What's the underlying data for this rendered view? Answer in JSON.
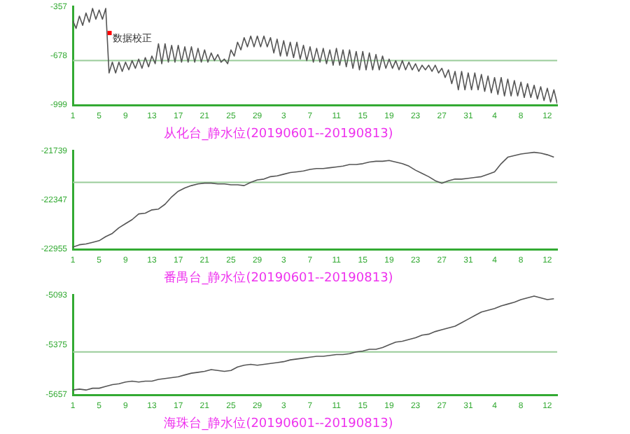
{
  "chart_data": [
    {
      "type": "line",
      "title": "从化台_静水位(20190601--20190813)",
      "grid": false,
      "legend": false,
      "marker": "none",
      "line_style": "solid",
      "xlim": [
        "2019-06-01",
        "2019-08-13T12:00"
      ],
      "xticks": [
        {
          "value": "2019-06-01",
          "label": "1"
        },
        {
          "value": "2019-06-05",
          "label": "5"
        },
        {
          "value": "2019-06-09",
          "label": "9"
        },
        {
          "value": "2019-06-13",
          "label": "13"
        },
        {
          "value": "2019-06-17",
          "label": "17"
        },
        {
          "value": "2019-06-21",
          "label": "21"
        },
        {
          "value": "2019-06-25",
          "label": "25"
        },
        {
          "value": "2019-06-29",
          "label": "29"
        },
        {
          "value": "2019-07-03",
          "label": "3"
        },
        {
          "value": "2019-07-07",
          "label": "7"
        },
        {
          "value": "2019-07-11",
          "label": "11"
        },
        {
          "value": "2019-07-15",
          "label": "15"
        },
        {
          "value": "2019-07-19",
          "label": "19"
        },
        {
          "value": "2019-07-23",
          "label": "23"
        },
        {
          "value": "2019-07-27",
          "label": "27"
        },
        {
          "value": "2019-07-31",
          "label": "31"
        },
        {
          "value": "2019-08-04",
          "label": "4"
        },
        {
          "value": "2019-08-08",
          "label": "8"
        },
        {
          "value": "2019-08-12",
          "label": "12"
        }
      ],
      "ylim": [
        -999,
        -357
      ],
      "yticks": [
        -999,
        -678,
        -357
      ],
      "ref_lines": [
        {
          "axis": "y",
          "value": -710,
          "color": "#99cc99"
        }
      ],
      "annotations": [
        {
          "text": "数据校正",
          "x": "2019-06-06T14:00",
          "y": -530
        }
      ],
      "series": [
        {
          "color": "#555555",
          "x": [
            "2019-06-01T00:00",
            "2019-06-01T12:00",
            "2019-06-02T00:00",
            "2019-06-02T12:00",
            "2019-06-03T00:00",
            "2019-06-03T12:00",
            "2019-06-04T00:00",
            "2019-06-04T12:00",
            "2019-06-05T00:00",
            "2019-06-05T12:00",
            "2019-06-06T00:00",
            "2019-06-06T12:00",
            "2019-06-07T00:00",
            "2019-06-07T12:00",
            "2019-06-08T00:00",
            "2019-06-08T12:00",
            "2019-06-09T00:00",
            "2019-06-09T12:00",
            "2019-06-10T00:00",
            "2019-06-10T12:00",
            "2019-06-11T00:00",
            "2019-06-11T12:00",
            "2019-06-12T00:00",
            "2019-06-12T12:00",
            "2019-06-13T00:00",
            "2019-06-13T12:00",
            "2019-06-14T00:00",
            "2019-06-14T12:00",
            "2019-06-15T00:00",
            "2019-06-15T12:00",
            "2019-06-16T00:00",
            "2019-06-16T12:00",
            "2019-06-17T00:00",
            "2019-06-17T12:00",
            "2019-06-18T00:00",
            "2019-06-18T12:00",
            "2019-06-19T00:00",
            "2019-06-19T12:00",
            "2019-06-20T00:00",
            "2019-06-20T12:00",
            "2019-06-21T00:00",
            "2019-06-21T12:00",
            "2019-06-22T00:00",
            "2019-06-22T12:00",
            "2019-06-23T00:00",
            "2019-06-23T12:00",
            "2019-06-24T00:00",
            "2019-06-24T12:00",
            "2019-06-25T00:00",
            "2019-06-25T12:00",
            "2019-06-26T00:00",
            "2019-06-26T12:00",
            "2019-06-27T00:00",
            "2019-06-27T12:00",
            "2019-06-28T00:00",
            "2019-06-28T12:00",
            "2019-06-29T00:00",
            "2019-06-29T12:00",
            "2019-06-30T00:00",
            "2019-06-30T12:00",
            "2019-07-01T00:00",
            "2019-07-01T12:00",
            "2019-07-02T00:00",
            "2019-07-02T12:00",
            "2019-07-03T00:00",
            "2019-07-03T12:00",
            "2019-07-04T00:00",
            "2019-07-04T12:00",
            "2019-07-05T00:00",
            "2019-07-05T12:00",
            "2019-07-06T00:00",
            "2019-07-06T12:00",
            "2019-07-07T00:00",
            "2019-07-07T12:00",
            "2019-07-08T00:00",
            "2019-07-08T12:00",
            "2019-07-09T00:00",
            "2019-07-09T12:00",
            "2019-07-10T00:00",
            "2019-07-10T12:00",
            "2019-07-11T00:00",
            "2019-07-11T12:00",
            "2019-07-12T00:00",
            "2019-07-12T12:00",
            "2019-07-13T00:00",
            "2019-07-13T12:00",
            "2019-07-14T00:00",
            "2019-07-14T12:00",
            "2019-07-15T00:00",
            "2019-07-15T12:00",
            "2019-07-16T00:00",
            "2019-07-16T12:00",
            "2019-07-17T00:00",
            "2019-07-17T12:00",
            "2019-07-18T00:00",
            "2019-07-18T12:00",
            "2019-07-19T00:00",
            "2019-07-19T12:00",
            "2019-07-20T00:00",
            "2019-07-20T12:00",
            "2019-07-21T00:00",
            "2019-07-21T12:00",
            "2019-07-22T00:00",
            "2019-07-22T12:00",
            "2019-07-23T00:00",
            "2019-07-23T12:00",
            "2019-07-24T00:00",
            "2019-07-24T12:00",
            "2019-07-25T00:00",
            "2019-07-25T12:00",
            "2019-07-26T00:00",
            "2019-07-26T12:00",
            "2019-07-27T00:00",
            "2019-07-27T12:00",
            "2019-07-28T00:00",
            "2019-07-28T12:00",
            "2019-07-29T00:00",
            "2019-07-29T12:00",
            "2019-07-30T00:00",
            "2019-07-30T12:00",
            "2019-07-31T00:00",
            "2019-07-31T12:00",
            "2019-08-01T00:00",
            "2019-08-01T12:00",
            "2019-08-02T00:00",
            "2019-08-02T12:00",
            "2019-08-03T00:00",
            "2019-08-03T12:00",
            "2019-08-04T00:00",
            "2019-08-04T12:00",
            "2019-08-05T00:00",
            "2019-08-05T12:00",
            "2019-08-06T00:00",
            "2019-08-06T12:00",
            "2019-08-07T00:00",
            "2019-08-07T12:00",
            "2019-08-08T00:00",
            "2019-08-08T12:00",
            "2019-08-09T00:00",
            "2019-08-09T12:00",
            "2019-08-10T00:00",
            "2019-08-10T12:00",
            "2019-08-11T00:00",
            "2019-08-11T12:00",
            "2019-08-12T00:00",
            "2019-08-12T12:00",
            "2019-08-13T00:00",
            "2019-08-13T12:00"
          ],
          "values": [
            -450,
            -500,
            -420,
            -480,
            -400,
            -460,
            -370,
            -440,
            -380,
            -440,
            -370,
            -790,
            -720,
            -790,
            -720,
            -780,
            -720,
            -770,
            -710,
            -760,
            -700,
            -760,
            -690,
            -750,
            -680,
            -730,
            -600,
            -730,
            -600,
            -720,
            -610,
            -720,
            -610,
            -720,
            -620,
            -720,
            -620,
            -720,
            -630,
            -720,
            -640,
            -720,
            -660,
            -710,
            -670,
            -720,
            -700,
            -730,
            -640,
            -680,
            -590,
            -640,
            -560,
            -620,
            -550,
            -620,
            -550,
            -620,
            -550,
            -620,
            -560,
            -660,
            -570,
            -680,
            -580,
            -680,
            -590,
            -690,
            -590,
            -700,
            -610,
            -710,
            -620,
            -720,
            -630,
            -720,
            -630,
            -730,
            -640,
            -740,
            -630,
            -740,
            -640,
            -750,
            -640,
            -760,
            -650,
            -770,
            -650,
            -770,
            -660,
            -770,
            -670,
            -770,
            -680,
            -760,
            -700,
            -760,
            -710,
            -770,
            -710,
            -770,
            -720,
            -770,
            -730,
            -780,
            -740,
            -770,
            -740,
            -780,
            -740,
            -790,
            -760,
            -820,
            -770,
            -860,
            -780,
            -900,
            -780,
            -900,
            -790,
            -900,
            -790,
            -900,
            -800,
            -910,
            -810,
            -920,
            -820,
            -930,
            -820,
            -940,
            -830,
            -940,
            -840,
            -940,
            -850,
            -950,
            -860,
            -950,
            -870,
            -960,
            -880,
            -970,
            -890,
            -980,
            -900,
            -990
          ]
        }
      ]
    },
    {
      "type": "line",
      "title": "番禺台_静水位(20190601--20190813)",
      "grid": false,
      "legend": false,
      "marker": "none",
      "line_style": "solid",
      "xlim": [
        "2019-06-01",
        "2019-08-13T12:00"
      ],
      "xticks": [
        {
          "value": "2019-06-01",
          "label": "1"
        },
        {
          "value": "2019-06-05",
          "label": "5"
        },
        {
          "value": "2019-06-09",
          "label": "9"
        },
        {
          "value": "2019-06-13",
          "label": "13"
        },
        {
          "value": "2019-06-17",
          "label": "17"
        },
        {
          "value": "2019-06-21",
          "label": "21"
        },
        {
          "value": "2019-06-25",
          "label": "25"
        },
        {
          "value": "2019-06-29",
          "label": "29"
        },
        {
          "value": "2019-07-03",
          "label": "3"
        },
        {
          "value": "2019-07-07",
          "label": "7"
        },
        {
          "value": "2019-07-11",
          "label": "11"
        },
        {
          "value": "2019-07-15",
          "label": "15"
        },
        {
          "value": "2019-07-19",
          "label": "19"
        },
        {
          "value": "2019-07-23",
          "label": "23"
        },
        {
          "value": "2019-07-27",
          "label": "27"
        },
        {
          "value": "2019-07-31",
          "label": "31"
        },
        {
          "value": "2019-08-04",
          "label": "4"
        },
        {
          "value": "2019-08-08",
          "label": "8"
        },
        {
          "value": "2019-08-12",
          "label": "12"
        }
      ],
      "ylim": [
        -22955,
        -21739
      ],
      "yticks": [
        -22955,
        -22347,
        -21739
      ],
      "ref_lines": [
        {
          "axis": "y",
          "value": -22130,
          "color": "#99cc99"
        }
      ],
      "series": [
        {
          "color": "#555555",
          "x": [
            "2019-06-01",
            "2019-06-02",
            "2019-06-03",
            "2019-06-04",
            "2019-06-05",
            "2019-06-06",
            "2019-06-07",
            "2019-06-08",
            "2019-06-09",
            "2019-06-10",
            "2019-06-11",
            "2019-06-12",
            "2019-06-13",
            "2019-06-14",
            "2019-06-15",
            "2019-06-16",
            "2019-06-17",
            "2019-06-18",
            "2019-06-19",
            "2019-06-20",
            "2019-06-21",
            "2019-06-22",
            "2019-06-23",
            "2019-06-24",
            "2019-06-25",
            "2019-06-26",
            "2019-06-27",
            "2019-06-28",
            "2019-06-29",
            "2019-06-30",
            "2019-07-01",
            "2019-07-02",
            "2019-07-03",
            "2019-07-04",
            "2019-07-05",
            "2019-07-06",
            "2019-07-07",
            "2019-07-08",
            "2019-07-09",
            "2019-07-10",
            "2019-07-11",
            "2019-07-12",
            "2019-07-13",
            "2019-07-14",
            "2019-07-15",
            "2019-07-16",
            "2019-07-17",
            "2019-07-18",
            "2019-07-19",
            "2019-07-20",
            "2019-07-21",
            "2019-07-22",
            "2019-07-23",
            "2019-07-24",
            "2019-07-25",
            "2019-07-26",
            "2019-07-27",
            "2019-07-28",
            "2019-07-29",
            "2019-07-30",
            "2019-07-31",
            "2019-08-01",
            "2019-08-02",
            "2019-08-03",
            "2019-08-04",
            "2019-08-05",
            "2019-08-06",
            "2019-08-07",
            "2019-08-08",
            "2019-08-09",
            "2019-08-10",
            "2019-08-11",
            "2019-08-12",
            "2019-08-13"
          ],
          "values": [
            -22930,
            -22900,
            -22890,
            -22870,
            -22850,
            -22800,
            -22760,
            -22690,
            -22640,
            -22590,
            -22520,
            -22510,
            -22470,
            -22460,
            -22400,
            -22310,
            -22240,
            -22200,
            -22170,
            -22150,
            -22140,
            -22140,
            -22150,
            -22150,
            -22160,
            -22160,
            -22170,
            -22130,
            -22100,
            -22090,
            -22060,
            -22050,
            -22030,
            -22010,
            -22000,
            -21990,
            -21970,
            -21960,
            -21960,
            -21950,
            -21940,
            -21930,
            -21910,
            -21910,
            -21900,
            -21880,
            -21870,
            -21870,
            -21860,
            -21880,
            -21900,
            -21930,
            -21980,
            -22020,
            -22060,
            -22110,
            -22140,
            -22110,
            -22090,
            -22090,
            -22080,
            -22070,
            -22060,
            -22030,
            -22000,
            -21900,
            -21820,
            -21800,
            -21780,
            -21770,
            -21760,
            -21770,
            -21790,
            -21820
          ]
        }
      ]
    },
    {
      "type": "line",
      "title": "海珠台_静水位(20190601--20190813)",
      "grid": false,
      "legend": false,
      "marker": "none",
      "line_style": "solid",
      "xlim": [
        "2019-06-01",
        "2019-08-13T12:00"
      ],
      "xticks": [
        {
          "value": "2019-06-01",
          "label": "1"
        },
        {
          "value": "2019-06-05",
          "label": "5"
        },
        {
          "value": "2019-06-09",
          "label": "9"
        },
        {
          "value": "2019-06-13",
          "label": "13"
        },
        {
          "value": "2019-06-17",
          "label": "17"
        },
        {
          "value": "2019-06-21",
          "label": "21"
        },
        {
          "value": "2019-06-25",
          "label": "25"
        },
        {
          "value": "2019-06-29",
          "label": "29"
        },
        {
          "value": "2019-07-03",
          "label": "3"
        },
        {
          "value": "2019-07-07",
          "label": "7"
        },
        {
          "value": "2019-07-11",
          "label": "11"
        },
        {
          "value": "2019-07-15",
          "label": "15"
        },
        {
          "value": "2019-07-19",
          "label": "19"
        },
        {
          "value": "2019-07-23",
          "label": "23"
        },
        {
          "value": "2019-07-27",
          "label": "27"
        },
        {
          "value": "2019-07-31",
          "label": "31"
        },
        {
          "value": "2019-08-04",
          "label": "4"
        },
        {
          "value": "2019-08-08",
          "label": "8"
        },
        {
          "value": "2019-08-12",
          "label": "12"
        }
      ],
      "ylim": [
        -5657,
        -5093
      ],
      "yticks": [
        -5657,
        -5375,
        -5093
      ],
      "ref_lines": [
        {
          "axis": "y",
          "value": -5415,
          "color": "#99cc99"
        }
      ],
      "series": [
        {
          "color": "#555555",
          "x": [
            "2019-06-01",
            "2019-06-02",
            "2019-06-03",
            "2019-06-04",
            "2019-06-05",
            "2019-06-06",
            "2019-06-07",
            "2019-06-08",
            "2019-06-09",
            "2019-06-10",
            "2019-06-11",
            "2019-06-12",
            "2019-06-13",
            "2019-06-14",
            "2019-06-15",
            "2019-06-16",
            "2019-06-17",
            "2019-06-18",
            "2019-06-19",
            "2019-06-20",
            "2019-06-21",
            "2019-06-22",
            "2019-06-23",
            "2019-06-24",
            "2019-06-25",
            "2019-06-26",
            "2019-06-27",
            "2019-06-28",
            "2019-06-29",
            "2019-06-30",
            "2019-07-01",
            "2019-07-02",
            "2019-07-03",
            "2019-07-04",
            "2019-07-05",
            "2019-07-06",
            "2019-07-07",
            "2019-07-08",
            "2019-07-09",
            "2019-07-10",
            "2019-07-11",
            "2019-07-12",
            "2019-07-13",
            "2019-07-14",
            "2019-07-15",
            "2019-07-16",
            "2019-07-17",
            "2019-07-18",
            "2019-07-19",
            "2019-07-20",
            "2019-07-21",
            "2019-07-22",
            "2019-07-23",
            "2019-07-24",
            "2019-07-25",
            "2019-07-26",
            "2019-07-27",
            "2019-07-28",
            "2019-07-29",
            "2019-07-30",
            "2019-07-31",
            "2019-08-01",
            "2019-08-02",
            "2019-08-03",
            "2019-08-04",
            "2019-08-05",
            "2019-08-06",
            "2019-08-07",
            "2019-08-08",
            "2019-08-09",
            "2019-08-10",
            "2019-08-11",
            "2019-08-12",
            "2019-08-13"
          ],
          "values": [
            -5630,
            -5625,
            -5630,
            -5620,
            -5620,
            -5610,
            -5600,
            -5595,
            -5585,
            -5580,
            -5585,
            -5580,
            -5580,
            -5570,
            -5565,
            -5560,
            -5555,
            -5545,
            -5535,
            -5530,
            -5525,
            -5515,
            -5520,
            -5525,
            -5520,
            -5500,
            -5490,
            -5485,
            -5490,
            -5485,
            -5480,
            -5475,
            -5470,
            -5460,
            -5455,
            -5450,
            -5445,
            -5440,
            -5440,
            -5435,
            -5430,
            -5430,
            -5425,
            -5415,
            -5410,
            -5400,
            -5400,
            -5390,
            -5375,
            -5360,
            -5355,
            -5345,
            -5335,
            -5320,
            -5315,
            -5300,
            -5290,
            -5280,
            -5270,
            -5250,
            -5230,
            -5210,
            -5190,
            -5180,
            -5170,
            -5155,
            -5145,
            -5135,
            -5120,
            -5110,
            -5100,
            -5110,
            -5120,
            -5115
          ]
        }
      ]
    }
  ]
}
